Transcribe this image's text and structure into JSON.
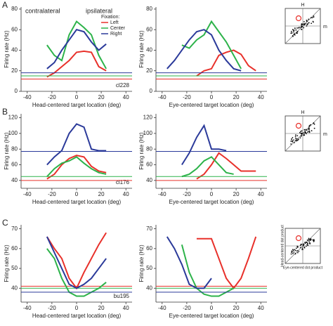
{
  "chart_data": [
    {
      "type": "line",
      "panel": "A",
      "ylabel": "Firing rate (Hz)",
      "xlabel": "Head-centered target location (deg)",
      "annotations": [
        "contralateral",
        "ipsilateral"
      ],
      "legend_title": "Fixation:",
      "note": "cl228",
      "x": [
        -24,
        -18,
        -12,
        -6,
        0,
        6,
        12,
        18,
        24
      ],
      "series": [
        {
          "name": "Left",
          "color": "#e8302a",
          "baseline": 12,
          "values": [
            14,
            18,
            24,
            30,
            38,
            39,
            38,
            24,
            20
          ]
        },
        {
          "name": "Center",
          "color": "#2db34a",
          "baseline": 15,
          "values": [
            45,
            35,
            30,
            55,
            68,
            62,
            55,
            35,
            22
          ]
        },
        {
          "name": "Right",
          "color": "#2b3a9a",
          "baseline": 18,
          "values": [
            22,
            28,
            40,
            50,
            60,
            58,
            48,
            40,
            46
          ]
        }
      ],
      "xlim": [
        -45,
        45
      ],
      "xticks": [
        -40,
        -20,
        0,
        20,
        40
      ],
      "ylim": [
        0,
        82
      ],
      "yticks": [
        0,
        20,
        40,
        60,
        80
      ]
    },
    {
      "type": "line",
      "ylabel": "Firing rate (Hz)",
      "xlabel": "Eye-centered target location (deg)",
      "x": [
        -36,
        -30,
        -24,
        -18,
        -12,
        -6,
        0,
        6,
        12,
        18,
        24,
        30,
        36
      ],
      "series": [
        {
          "color": "#e8302a",
          "baseline": 12,
          "values": [
            null,
            null,
            null,
            null,
            15,
            20,
            22,
            35,
            38,
            40,
            36,
            25,
            20
          ]
        },
        {
          "color": "#2db34a",
          "baseline": 15,
          "values": [
            null,
            null,
            45,
            42,
            50,
            55,
            68,
            58,
            48,
            35,
            22,
            null,
            null
          ]
        },
        {
          "color": "#2b3a9a",
          "baseline": 18,
          "values": [
            22,
            30,
            40,
            50,
            58,
            60,
            55,
            40,
            30,
            22,
            20,
            null,
            null
          ]
        }
      ],
      "xlim": [
        -45,
        45
      ],
      "xticks": [
        -40,
        -20,
        0,
        20,
        40
      ],
      "ylim": [
        0,
        82
      ],
      "yticks": [
        0,
        20,
        40,
        60,
        80
      ]
    },
    {
      "type": "line",
      "panel": "B",
      "ylabel": "Firing rate (Hz)",
      "xlabel": "Head-centered target location (deg)",
      "note": "cl176",
      "x": [
        -24,
        -18,
        -12,
        -6,
        0,
        6,
        12,
        18,
        24
      ],
      "series": [
        {
          "color": "#e8302a",
          "baseline": 40,
          "values": [
            42,
            48,
            60,
            68,
            72,
            70,
            58,
            52,
            50
          ]
        },
        {
          "color": "#2db34a",
          "baseline": 45,
          "values": [
            45,
            55,
            62,
            65,
            70,
            62,
            55,
            50,
            48
          ]
        },
        {
          "color": "#2b3a9a",
          "baseline": 77,
          "values": [
            60,
            70,
            78,
            100,
            112,
            108,
            80,
            78,
            78
          ]
        }
      ],
      "xlim": [
        -45,
        45
      ],
      "xticks": [
        -40,
        -20,
        0,
        20,
        40
      ],
      "ylim": [
        30,
        125
      ],
      "yticks": [
        40,
        60,
        80,
        100,
        120
      ]
    },
    {
      "type": "line",
      "ylabel": "Firing rate (Hz)",
      "xlabel": "Eye-centered target location (deg)",
      "x": [
        -36,
        -30,
        -24,
        -18,
        -12,
        -6,
        0,
        6,
        12,
        18,
        24,
        30,
        36
      ],
      "series": [
        {
          "color": "#e8302a",
          "baseline": 40,
          "values": [
            null,
            null,
            null,
            null,
            42,
            48,
            60,
            75,
            68,
            60,
            52,
            52,
            52
          ]
        },
        {
          "color": "#2db34a",
          "baseline": 45,
          "values": [
            null,
            null,
            45,
            48,
            55,
            65,
            70,
            60,
            50,
            48,
            null,
            null,
            null
          ]
        },
        {
          "color": "#2b3a9a",
          "baseline": 77,
          "values": [
            null,
            null,
            60,
            75,
            95,
            110,
            80,
            80,
            78,
            null,
            null,
            null,
            null
          ]
        }
      ],
      "xlim": [
        -45,
        45
      ],
      "xticks": [
        -40,
        -20,
        0,
        20,
        40
      ],
      "ylim": [
        30,
        125
      ],
      "yticks": [
        40,
        60,
        80,
        100,
        120
      ]
    },
    {
      "type": "line",
      "panel": "C",
      "ylabel": "Firing rate (Hz)",
      "xlabel": "Head-centered target location (deg)",
      "note": "bu195",
      "x": [
        -24,
        -18,
        -12,
        -6,
        0,
        6,
        12,
        18,
        24
      ],
      "series": [
        {
          "color": "#e8302a",
          "baseline": 41,
          "values": [
            66,
            60,
            55,
            45,
            40,
            48,
            55,
            62,
            68
          ]
        },
        {
          "color": "#2db34a",
          "baseline": 40,
          "values": [
            60,
            55,
            45,
            38,
            36,
            36,
            38,
            40,
            43
          ]
        },
        {
          "color": "#2b3a9a",
          "baseline": 38,
          "values": [
            66,
            58,
            50,
            42,
            40,
            42,
            45,
            50,
            55
          ]
        }
      ],
      "xlim": [
        -45,
        45
      ],
      "xticks": [
        -40,
        -20,
        0,
        20,
        40
      ],
      "ylim": [
        33,
        72
      ],
      "yticks": [
        40,
        50,
        60,
        70
      ]
    },
    {
      "type": "line",
      "ylabel": "Firing rate (Hz)",
      "xlabel": "Eye-centered target location (deg)",
      "x": [
        -36,
        -30,
        -24,
        -18,
        -12,
        -6,
        0,
        6,
        12,
        18,
        24,
        30,
        36
      ],
      "series": [
        {
          "color": "#e8302a",
          "baseline": 41,
          "values": [
            null,
            null,
            null,
            null,
            65,
            65,
            65,
            55,
            45,
            40,
            45,
            55,
            66
          ]
        },
        {
          "color": "#2db34a",
          "baseline": 40,
          "values": [
            null,
            null,
            62,
            48,
            40,
            37,
            36,
            36,
            38,
            40,
            null,
            null,
            null
          ]
        },
        {
          "color": "#2b3a9a",
          "baseline": 38,
          "values": [
            66,
            60,
            52,
            42,
            40,
            40,
            45,
            null,
            null,
            null,
            null,
            null,
            null
          ]
        }
      ],
      "xlim": [
        -45,
        45
      ],
      "xticks": [
        -40,
        -20,
        0,
        20,
        40
      ],
      "ylim": [
        33,
        72
      ],
      "yticks": [
        40,
        50,
        60,
        70
      ]
    }
  ],
  "insets": [
    {
      "y_label": "H",
      "x_label": "m"
    },
    {
      "y_label": "H",
      "x_label": "m"
    },
    {
      "y_label": "Head-centered dot product",
      "x_label": "Eye-centered dot product"
    }
  ]
}
